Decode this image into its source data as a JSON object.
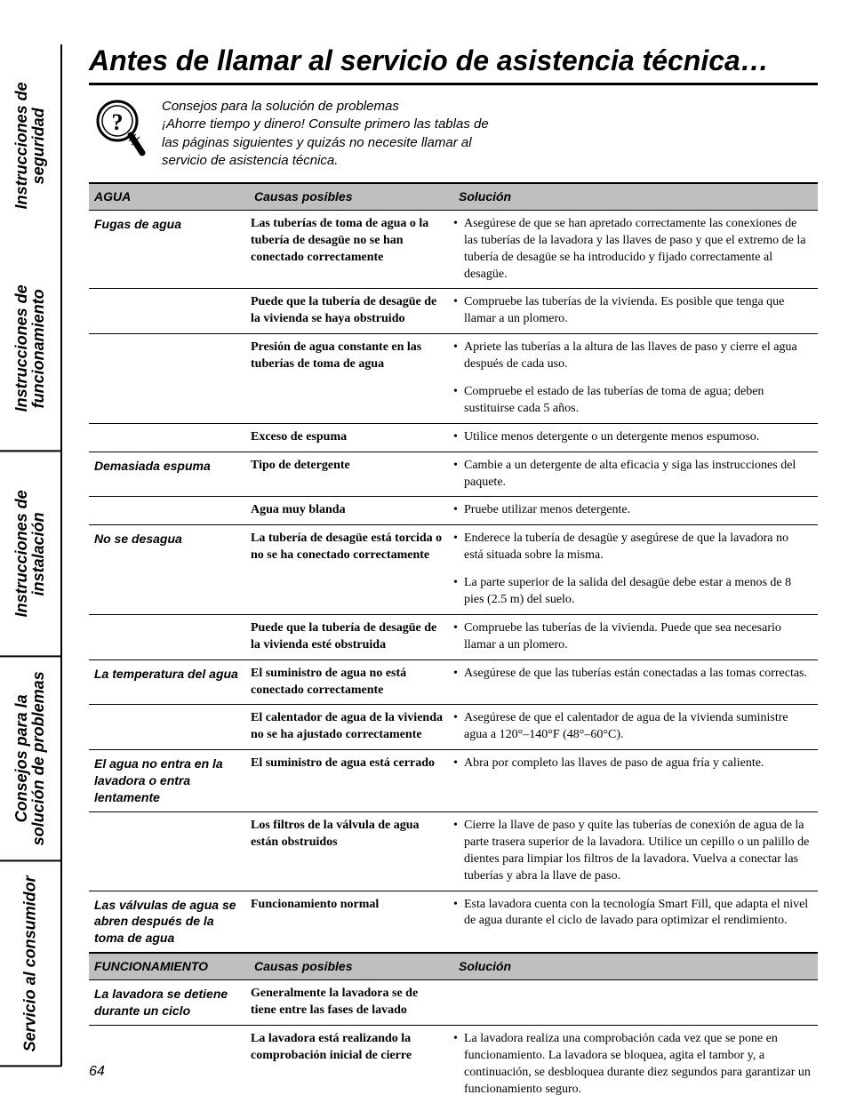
{
  "title": "Antes de llamar al servicio de asistencia técnica…",
  "intro": {
    "line1": "Consejos para la solución de problemas",
    "line2": "¡Ahorre tiempo y dinero! Consulte primero las tablas de las páginas siguientes y quizás no necesite llamar al servicio de asistencia técnica."
  },
  "side_tabs": [
    "Instrucciones de seguridad",
    "Instrucciones de funcionamiento",
    "Instrucciones de instalación",
    "Consejos para la solución de problemas",
    "Servicio al consumidor"
  ],
  "sections": [
    {
      "header": [
        "AGUA",
        "Causas posibles",
        "Solución"
      ],
      "rows": [
        {
          "problem": "Fugas de agua",
          "cause": "Las tuberías de toma de agua o la tubería de desagüe no se han conectado correctamente",
          "solutions": [
            "Asegúrese de que se han apretado correctamente las conexiones de las tuberías de la lavadora y las llaves de paso y que el extremo de la tubería de desagüe se ha introducido y fijado correctamente al desagüe."
          ],
          "hr": true
        },
        {
          "problem": "",
          "cause": "Puede que la tubería de desagüe de la vivienda se haya obstruido",
          "solutions": [
            "Compruebe las tuberías de la vivienda. Es posible que tenga que llamar a un plomero."
          ],
          "hr": true
        },
        {
          "problem": "",
          "cause": "Presión de agua constante en las tuberías de toma de agua",
          "solutions": [
            "Apriete las tuberías a la altura de las llaves de paso y cierre el agua después de cada uso.",
            "Compruebe el estado de las tuberías de toma de agua; deben sustituirse cada 5 años."
          ],
          "hr": true
        },
        {
          "problem": "",
          "cause": "Exceso de espuma",
          "solutions": [
            "Utilice menos detergente o un detergente menos espumoso."
          ],
          "hr": true
        },
        {
          "problem": "Demasiada espuma",
          "cause": "Tipo de detergente",
          "solutions": [
            "Cambie a un detergente de alta eficacia y siga las instrucciones del paquete."
          ],
          "hr": true
        },
        {
          "problem": "",
          "cause": "Agua muy blanda",
          "solutions": [
            "Pruebe utilizar menos detergente."
          ],
          "hr": true
        },
        {
          "problem": "No se desagua",
          "cause": "La tubería de desagüe está torcida o no se ha conectado correctamente",
          "solutions": [
            "Enderece la tubería de desagüe y asegúrese de que la lavadora no está situada sobre la misma.",
            "La parte superior de la salida del desagüe debe estar a menos de 8 pies (2.5 m) del suelo."
          ],
          "hr": true
        },
        {
          "problem": "",
          "cause": "Puede que la tubería de desagüe de la vivienda esté obstruida",
          "solutions": [
            "Compruebe las tuberías de la vivienda. Puede que sea necesario llamar a un plomero."
          ],
          "hr": true
        },
        {
          "problem": "La temperatura del agua",
          "cause": "El suministro de agua no está conectado correctamente",
          "solutions": [
            "Asegúrese de que las tuberías están conectadas a las tomas correctas."
          ],
          "hr": true
        },
        {
          "problem": "",
          "cause": "El calentador de agua de la vivienda no se ha ajustado correctamente",
          "solutions": [
            "Asegúrese de que el calentador de agua de la vivienda suministre agua a 120°–140°F (48°–60°C)."
          ],
          "hr": true
        },
        {
          "problem": "El agua no entra en la lavadora o entra lentamente",
          "cause": "El suministro de agua está cerrado",
          "solutions": [
            "Abra por completo las llaves de paso de agua fría y caliente."
          ],
          "hr": true
        },
        {
          "problem": "",
          "cause": "Los filtros de la válvula de agua están obstruidos",
          "solutions": [
            "Cierre la llave de paso y quite las tuberías de conexión de agua de la parte trasera superior de la lavadora. Utilice un cepillo o un palillo de dientes para limpiar los filtros de la lavadora. Vuelva a conectar las tuberías y abra la llave de paso."
          ],
          "hr": true
        },
        {
          "problem": "Las válvulas de agua se abren después de la toma de agua",
          "cause": "Funcionamiento normal",
          "solutions": [
            "Esta lavadora cuenta con la tecnología Smart Fill, que adapta el nivel de agua durante el ciclo de lavado para optimizar el rendimiento."
          ],
          "hr": false
        }
      ]
    },
    {
      "header": [
        "FUNCIONAMIENTO",
        "Causas posibles",
        "Solución"
      ],
      "rows": [
        {
          "problem": "La lavadora se detiene durante un ciclo",
          "cause": "Generalmente la lavadora se de tiene entre las fases de lavado",
          "solutions": [],
          "hr": true
        },
        {
          "problem": "",
          "cause": "La lavadora está realizando la comprobación inicial de cierre",
          "solutions": [
            "La lavadora realiza una comprobación cada vez que se pone en funcionamiento. La lavadora se bloquea, agita el tambor y, a continuación, se desbloquea durante diez segundos para garantizar un funcionamiento seguro."
          ],
          "hr": false
        }
      ]
    }
  ],
  "page_number": "64",
  "colors": {
    "header_bg": "#bfbfbf",
    "text": "#000000",
    "bg": "#ffffff"
  }
}
